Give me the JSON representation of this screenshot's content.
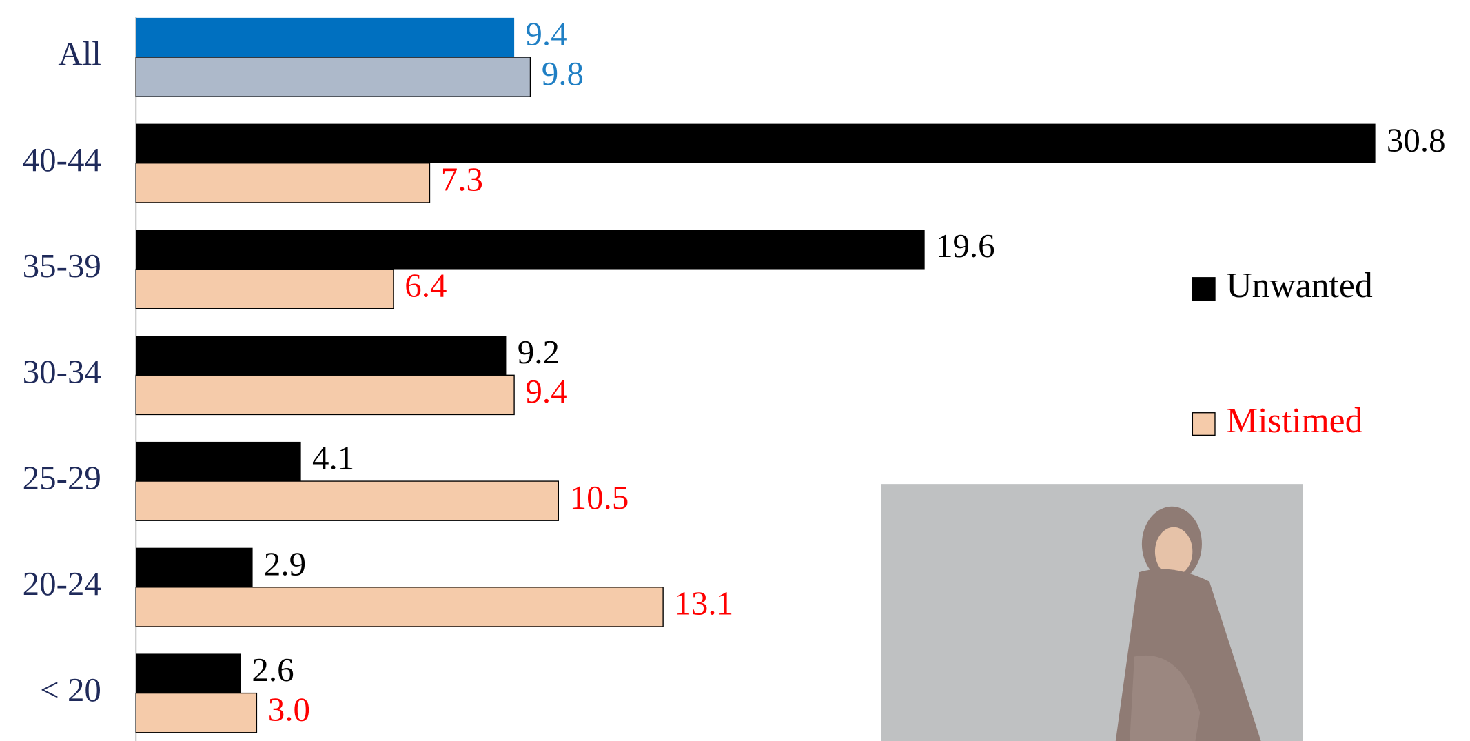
{
  "chart_data": {
    "type": "bar",
    "orientation": "horizontal",
    "categories": [
      "All",
      "40-44",
      "35-39",
      "30-34",
      "25-29",
      "20-24",
      "< 20"
    ],
    "series": [
      {
        "name": "Unwanted",
        "color": "#000000",
        "colors": [
          "#0070c0",
          "#000000",
          "#000000",
          "#000000",
          "#000000",
          "#000000",
          "#000000"
        ],
        "label_colors": [
          "#1f7fc4",
          "#000000",
          "#000000",
          "#000000",
          "#000000",
          "#000000",
          "#000000"
        ],
        "legend_text_color": "#000000",
        "values": [
          9.4,
          30.8,
          19.6,
          9.2,
          4.1,
          2.9,
          2.6
        ]
      },
      {
        "name": "Mistimed",
        "color": "#f5cbaa",
        "colors": [
          "#adb9ca",
          "#f5cbaa",
          "#f5cbaa",
          "#f5cbaa",
          "#f5cbaa",
          "#f5cbaa",
          "#f5cbaa"
        ],
        "label_colors": [
          "#1f7fc4",
          "#ff0000",
          "#ff0000",
          "#ff0000",
          "#ff0000",
          "#ff0000",
          "#ff0000"
        ],
        "legend_text_color": "#ff0000",
        "values": [
          9.8,
          7.3,
          6.4,
          9.4,
          10.5,
          13.1,
          3.0
        ],
        "value_labels": [
          "9.8",
          "7.3",
          "6.4",
          "9.4",
          "10.5",
          "13.1",
          "3.0"
        ]
      }
    ],
    "legend": "right"
  }
}
